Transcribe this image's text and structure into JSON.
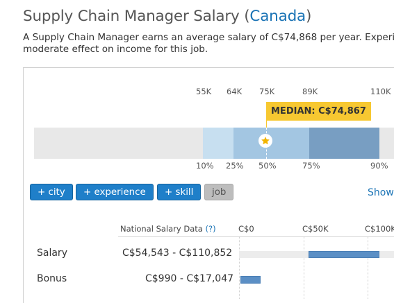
{
  "header": {
    "title_prefix": "Supply Chain Manager Salary (",
    "location": "Canada",
    "title_suffix": ")",
    "description_line1": "A Supply Chain Manager earns an average salary of C$74,868 per year. Experi",
    "description_line2": "moderate effect on income for this job."
  },
  "distribution": {
    "top_ticks": [
      "55K",
      "64K",
      "75K",
      "89K",
      "110K"
    ],
    "bottom_ticks": [
      "10%",
      "25%",
      "50%",
      "75%",
      "90%"
    ],
    "median_label": "MEDIAN: C$74,867"
  },
  "filters": {
    "city": "+ city",
    "experience": "+ experience",
    "skill": "+ skill",
    "job": "job",
    "show": "Show"
  },
  "table": {
    "header_label": "National Salary Data",
    "help": "(?)",
    "axis": [
      "C$0",
      "C$50K",
      "C$100K"
    ],
    "rows": [
      {
        "label": "Salary",
        "range": "C$54,543 - C$110,852"
      },
      {
        "label": "Bonus",
        "range": "C$990 - C$17,047"
      }
    ]
  },
  "colors": {
    "accent": "#1f7fc9",
    "median_flag": "#f7c831",
    "bar_light": "#c7dff0",
    "bar_mid": "#a3c6e2",
    "bar_dark": "#789ec2",
    "range_fill": "#5b8fc5"
  }
}
